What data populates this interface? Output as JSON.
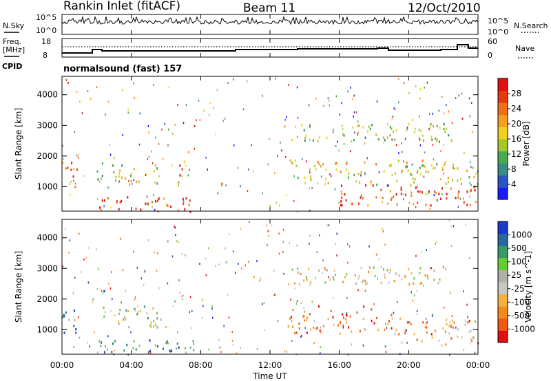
{
  "header": {
    "station": "Rankin Inlet (fitACF)",
    "beam": "Beam 11",
    "date": "12/Oct/2010"
  },
  "noise_panel": {
    "left_label": "N.Sky",
    "right_label": "N.Search",
    "left_ticks": [
      "10^5",
      "10^0"
    ],
    "right_ticks": [
      "10^5",
      "10^0"
    ]
  },
  "freq_panel": {
    "left_label_1": "Freq.",
    "left_label_2": "[MHz]",
    "left_ticks": [
      "18",
      "8"
    ],
    "right_label": "Nave",
    "right_ticks": [
      "60",
      "0"
    ]
  },
  "cpid_panel": {
    "label": "CPID",
    "mode": "normalsound (fast) 157"
  },
  "colors": {
    "colorscale": [
      "#1a1aff",
      "#2a55c0",
      "#3a8a88",
      "#4aaa50",
      "#a4c82a",
      "#f0d020",
      "#f5a020",
      "#f07018",
      "#e83a10",
      "#e01010"
    ],
    "velocity_scale": [
      "#e01010",
      "#f05a10",
      "#f58a1a",
      "#f5b040",
      "#c8c8c0",
      "#b0b0a8",
      "#66cc33",
      "#3a9a66",
      "#2a66a0",
      "#1a3acc"
    ]
  },
  "chart_data": [
    {
      "type": "heatmap",
      "name": "power",
      "ylabel": "Slant Range [km]",
      "xlabel": "",
      "x_ticks": [
        "00:00",
        "04:00",
        "08:00",
        "12:00",
        "16:00",
        "20:00",
        "00:00"
      ],
      "y_ticks": [
        1000,
        2000,
        3000,
        4000
      ],
      "ylim": [
        200,
        4600
      ],
      "colorbar": {
        "label": "Power [dB]",
        "ticks": [
          "4",
          "8",
          "12",
          "16",
          "20",
          "24",
          "28"
        ],
        "range": [
          0,
          30
        ]
      },
      "bands": [
        {
          "x0": 0.0,
          "x1": 0.9,
          "y0": 900,
          "y1": 1900,
          "level": 0.75
        },
        {
          "x0": 2.0,
          "x1": 5.8,
          "y0": 1100,
          "y1": 1800,
          "level": 0.45
        },
        {
          "x0": 2.0,
          "x1": 7.6,
          "y0": 200,
          "y1": 700,
          "level": 0.9
        },
        {
          "x0": 6.6,
          "x1": 7.3,
          "y0": 1000,
          "y1": 1900,
          "level": 0.7
        },
        {
          "x0": 12.8,
          "x1": 22.5,
          "y0": 2500,
          "y1": 3100,
          "level": 0.45
        },
        {
          "x0": 13.0,
          "x1": 24.0,
          "y0": 1100,
          "y1": 1900,
          "level": 0.55
        },
        {
          "x0": 16.0,
          "x1": 24.0,
          "y0": 400,
          "y1": 1100,
          "level": 0.85
        }
      ]
    },
    {
      "type": "heatmap",
      "name": "velocity",
      "ylabel": "Slant Range [km]",
      "xlabel": "Time UT",
      "x_ticks": [
        "00:00",
        "04:00",
        "08:00",
        "12:00",
        "16:00",
        "20:00",
        "00:00"
      ],
      "y_ticks": [
        1000,
        2000,
        3000,
        4000
      ],
      "ylim": [
        200,
        4600
      ],
      "colorbar": {
        "label": "Velocity [m s^-1]",
        "ticks": [
          "1000",
          "500",
          "100",
          "25",
          "-25",
          "-100",
          "-500",
          "-1000"
        ],
        "range": [
          -1000,
          1000
        ]
      },
      "bands": [
        {
          "x0": 0.0,
          "x1": 0.9,
          "y0": 900,
          "y1": 1900,
          "level": 0.8
        },
        {
          "x0": 2.0,
          "x1": 5.8,
          "y0": 1100,
          "y1": 1800,
          "level": 0.55
        },
        {
          "x0": 2.0,
          "x1": 7.6,
          "y0": 200,
          "y1": 700,
          "level": 0.75
        },
        {
          "x0": 12.8,
          "x1": 22.5,
          "y0": 2500,
          "y1": 3100,
          "level": 0.45
        },
        {
          "x0": 13.0,
          "x1": 19.0,
          "y0": 900,
          "y1": 1800,
          "level": 0.2
        },
        {
          "x0": 19.0,
          "x1": 24.0,
          "y0": 500,
          "y1": 1400,
          "level": 0.25
        }
      ]
    }
  ]
}
